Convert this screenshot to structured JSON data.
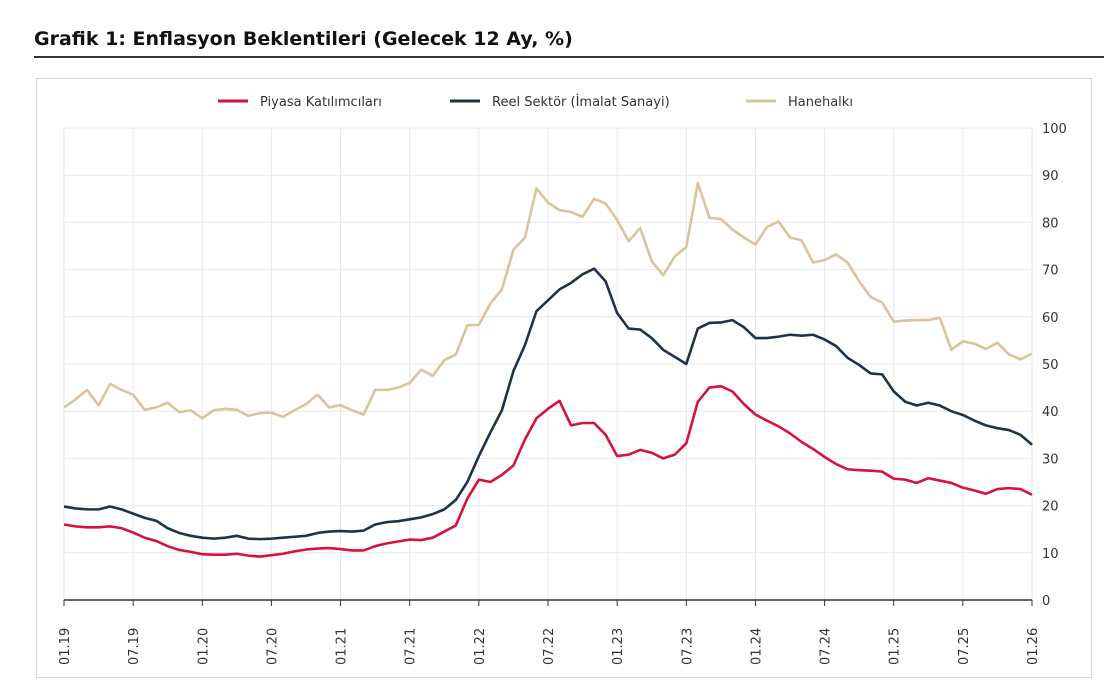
{
  "title": "Grafik 1: Enflasyon Beklentileri (Gelecek 12 Ay, %)",
  "chart_data": {
    "type": "line",
    "title": "Grafik 1: Enflasyon Beklentileri (Gelecek 12 Ay, %)",
    "xlabel": "",
    "ylabel": "",
    "ylim": [
      0,
      100
    ],
    "yticks": [
      0,
      10,
      20,
      30,
      40,
      50,
      60,
      70,
      80,
      90,
      100
    ],
    "y_axis_side": "right",
    "x_start": "01.19",
    "x_end": "01.26",
    "x_frequency": "monthly",
    "xtick_labels": [
      "01.19",
      "07.19",
      "01.20",
      "07.20",
      "01.21",
      "07.21",
      "01.22",
      "07.22",
      "01.23",
      "07.23",
      "01.24",
      "07.24",
      "01.25",
      "07.25",
      "01.26"
    ],
    "grid": true,
    "legend": "top",
    "series": [
      {
        "name": "Piyasa Katılımcıları",
        "color": "#d6123e",
        "values": [
          16.0,
          15.6,
          15.4,
          15.4,
          15.6,
          15.2,
          14.3,
          13.2,
          12.5,
          11.4,
          10.6,
          10.2,
          9.7,
          9.6,
          9.6,
          9.8,
          9.4,
          9.2,
          9.5,
          9.8,
          10.3,
          10.7,
          10.9,
          11.0,
          10.8,
          10.5,
          10.5,
          11.4,
          12.0,
          12.4,
          12.8,
          12.7,
          13.2,
          14.5,
          15.8,
          21.5,
          25.5,
          25.0,
          26.5,
          28.5,
          34.0,
          38.5,
          40.5,
          42.2,
          37.0,
          37.5,
          37.5,
          35.0,
          30.5,
          30.8,
          31.8,
          31.2,
          30.0,
          30.8,
          33.2,
          42.0,
          45.0,
          45.3,
          44.2,
          41.5,
          39.3,
          38.0,
          36.8,
          35.3,
          33.5,
          32.0,
          30.3,
          28.8,
          27.7,
          27.5,
          27.4,
          27.2,
          25.7,
          25.5,
          24.8,
          25.8,
          25.3,
          24.8,
          23.8,
          23.2,
          22.5,
          23.5,
          23.7,
          23.5,
          22.3
        ]
      },
      {
        "name": "Reel Sektör (İmalat Sanayi)",
        "color": "#1f3347",
        "values": [
          19.8,
          19.4,
          19.2,
          19.2,
          19.8,
          19.2,
          18.3,
          17.4,
          16.8,
          15.2,
          14.2,
          13.6,
          13.2,
          13.0,
          13.2,
          13.6,
          13.0,
          12.9,
          13.0,
          13.2,
          13.4,
          13.6,
          14.2,
          14.5,
          14.6,
          14.5,
          14.7,
          16.0,
          16.5,
          16.7,
          17.1,
          17.5,
          18.2,
          19.2,
          21.2,
          25.0,
          30.5,
          35.5,
          40.2,
          48.5,
          54.0,
          61.2,
          63.5,
          65.8,
          67.2,
          69.0,
          70.2,
          67.5,
          60.8,
          57.5,
          57.3,
          55.5,
          53.0,
          51.5,
          50.0,
          57.5,
          58.7,
          58.8,
          59.3,
          57.8,
          55.5,
          55.5,
          55.8,
          56.2,
          56.0,
          56.2,
          55.2,
          53.8,
          51.3,
          49.8,
          48.0,
          47.8,
          44.2,
          42.0,
          41.2,
          41.8,
          41.2,
          40.0,
          39.2,
          38.0,
          37.0,
          36.4,
          36.0,
          35.0,
          32.9
        ]
      },
      {
        "name": "Hanehalkı",
        "color": "#d9c4a0",
        "values": [
          40.8,
          42.5,
          44.5,
          41.2,
          45.8,
          44.5,
          43.5,
          40.3,
          40.8,
          41.8,
          39.8,
          40.2,
          38.5,
          40.2,
          40.5,
          40.3,
          39.0,
          39.6,
          39.7,
          38.8,
          40.2,
          41.5,
          43.5,
          40.8,
          41.3,
          40.2,
          39.3,
          44.5,
          44.5,
          45.0,
          46.0,
          48.8,
          47.5,
          50.8,
          52.0,
          58.2,
          58.3,
          62.8,
          65.8,
          74.2,
          76.8,
          87.2,
          84.2,
          82.6,
          82.2,
          81.2,
          85.0,
          84.0,
          80.5,
          76.0,
          78.8,
          71.8,
          68.8,
          72.8,
          74.8,
          88.3,
          81.0,
          80.7,
          78.5,
          76.8,
          75.3,
          79.0,
          80.2,
          76.8,
          76.2,
          71.5,
          72.0,
          73.2,
          71.5,
          67.5,
          64.2,
          63.0,
          59.0,
          59.2,
          59.3,
          59.3,
          59.8,
          53.0,
          54.8,
          54.3,
          53.2,
          54.5,
          52.0,
          51.0,
          52.2
        ]
      }
    ]
  }
}
